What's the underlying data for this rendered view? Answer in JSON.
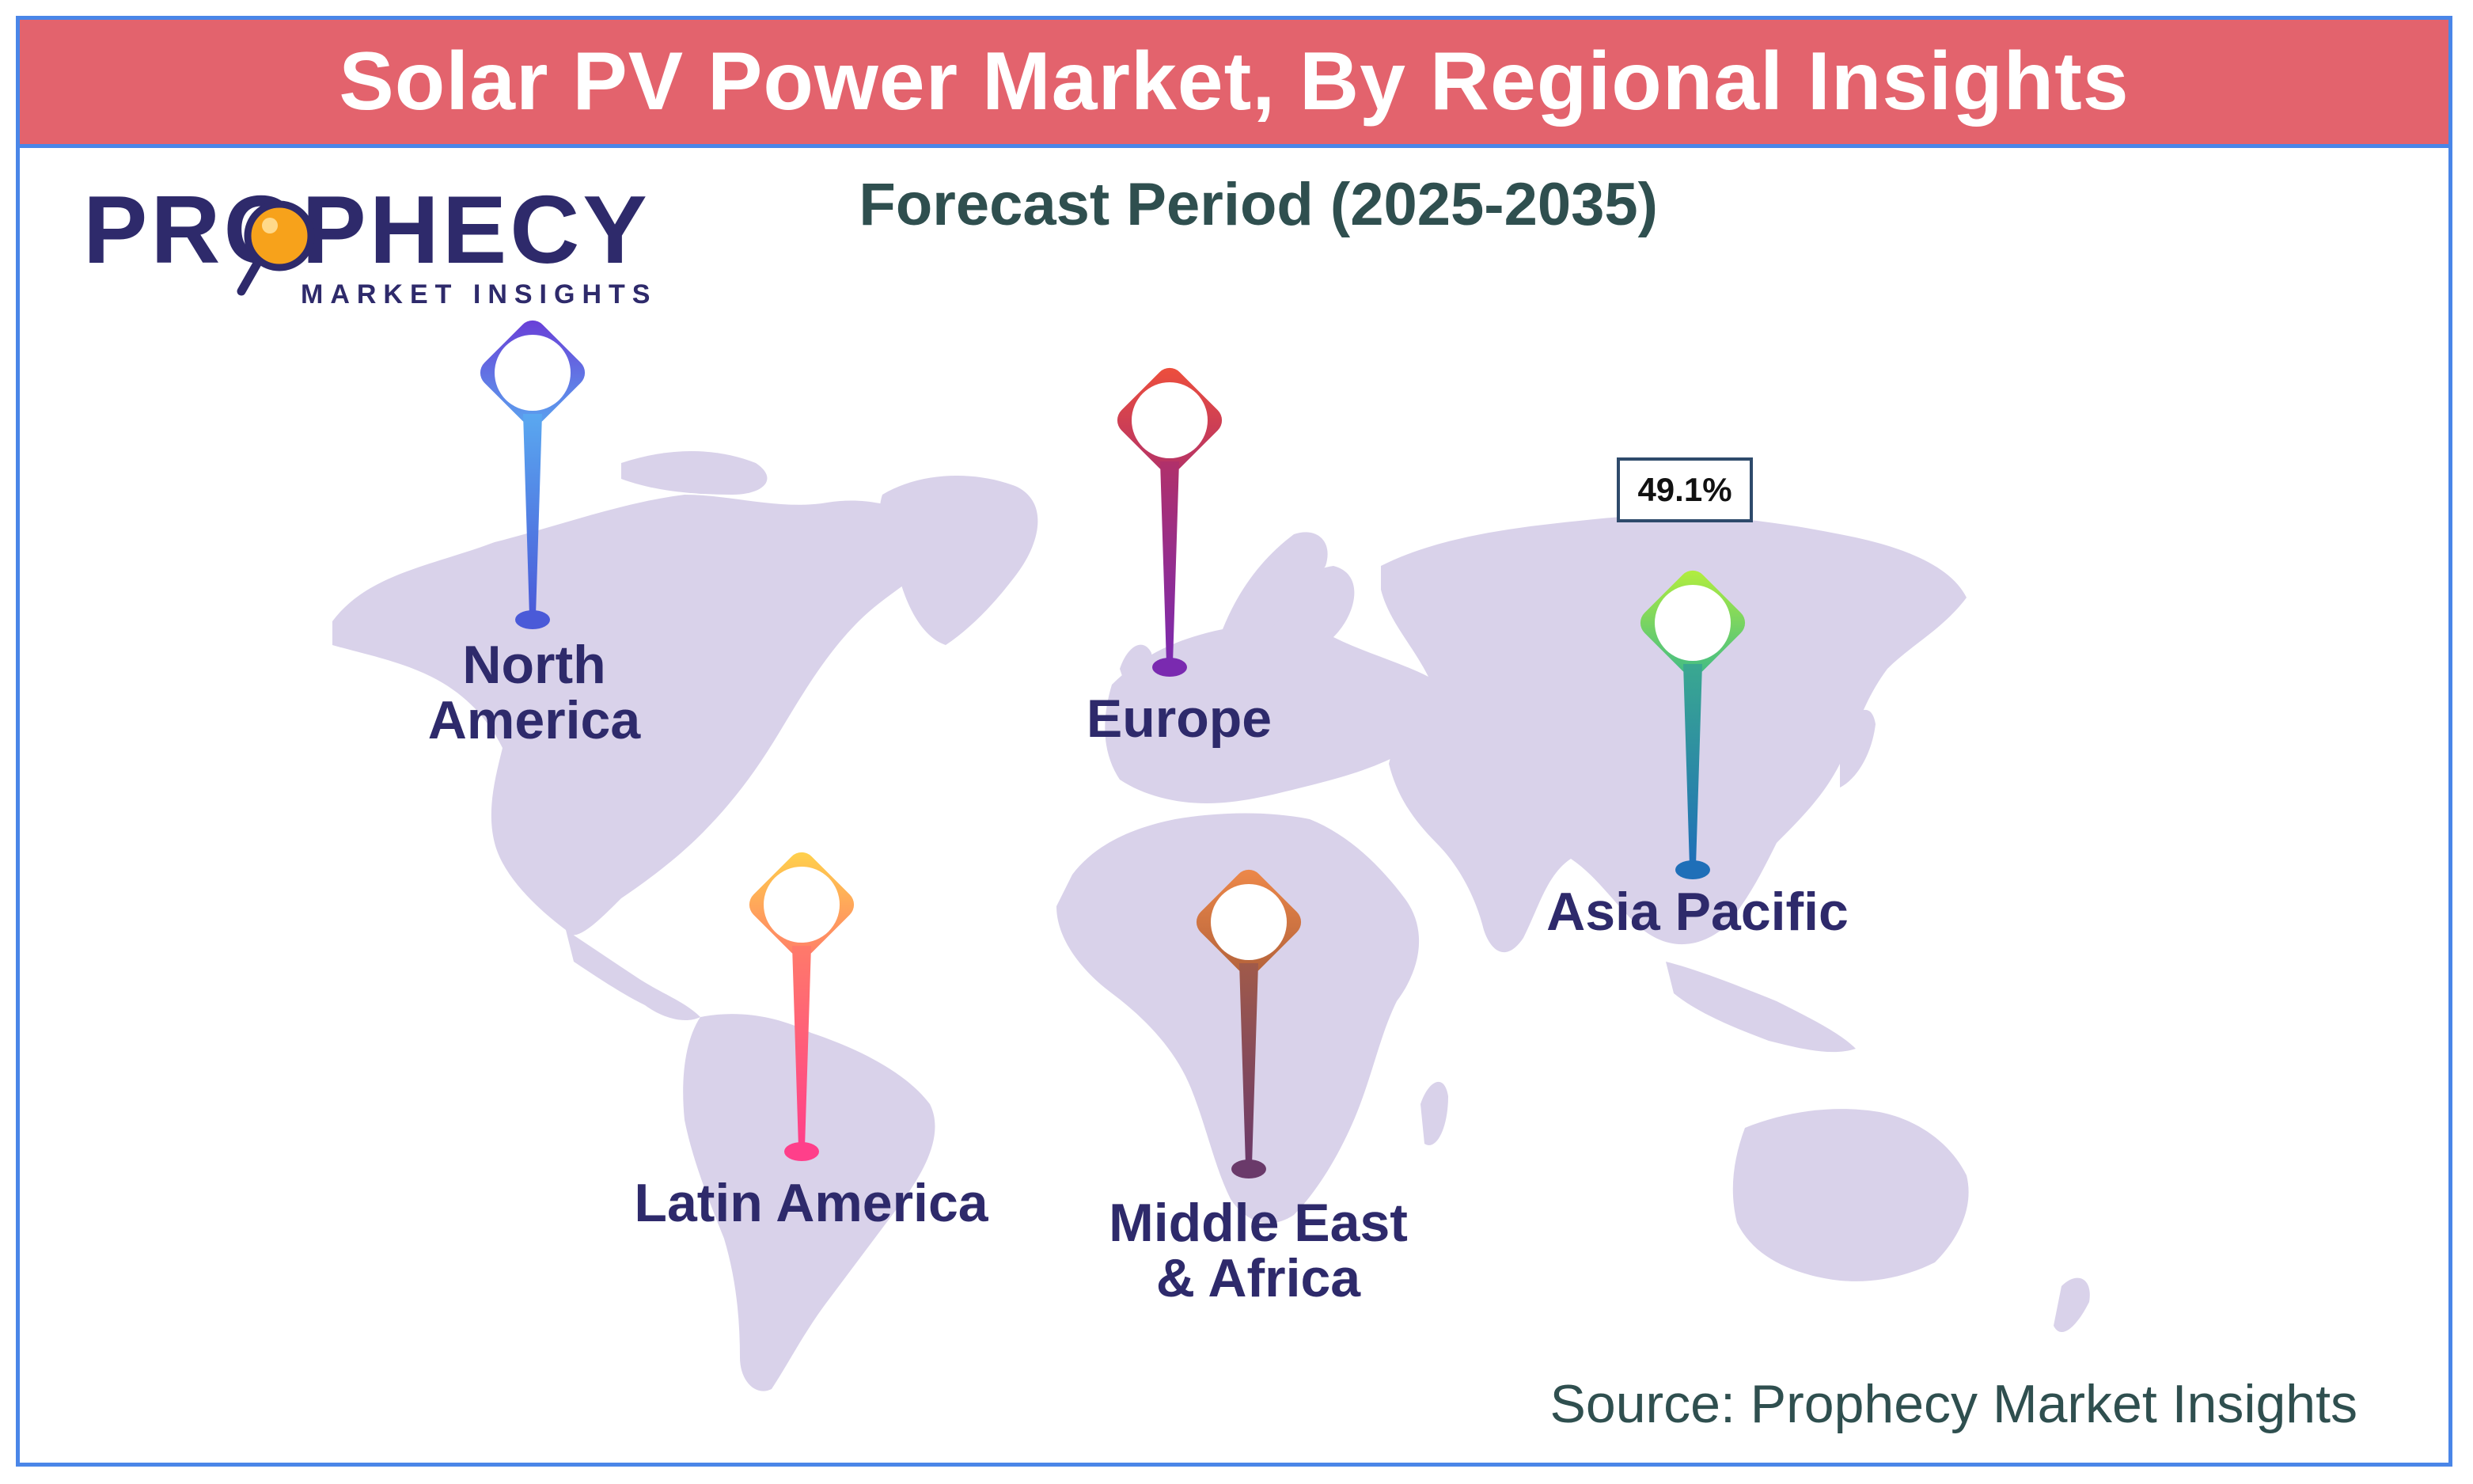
{
  "header": {
    "title": "Solar PV Power Market, By Regional Insights"
  },
  "subtitle": "Forecast Period (2025-2035)",
  "logo": {
    "brand": "PROPHECY",
    "tagline": "MARKET INSIGHTS",
    "icon": "magnifier-icon"
  },
  "regions": [
    {
      "name": "North America",
      "line1": "North",
      "line2": "America",
      "pin_colors": [
        "#6a5cd6",
        "#5aa8f0"
      ]
    },
    {
      "name": "Europe",
      "line1": "Europe",
      "line2": "",
      "pin_colors": [
        "#e8403a",
        "#8a2bb8"
      ]
    },
    {
      "name": "Asia Pacific",
      "line1": "Asia Pacific",
      "line2": "",
      "share": "49.1%",
      "pin_colors": [
        "#a8e83a",
        "#1f6fb8"
      ]
    },
    {
      "name": "Latin America",
      "line1": "Latin America",
      "line2": "",
      "pin_colors": [
        "#ffd54a",
        "#ff4f8a"
      ]
    },
    {
      "name": "Middle East & Africa",
      "line1": "Middle East",
      "line2": "& Africa",
      "pin_colors": [
        "#f08a4a",
        "#6a3a6a"
      ]
    }
  ],
  "colors": {
    "banner": "#e3636d",
    "border": "#4a86e8",
    "land": "#d9d2ea",
    "label": "#2e2a6b"
  },
  "source": "Source: Prophecy Market Insights"
}
